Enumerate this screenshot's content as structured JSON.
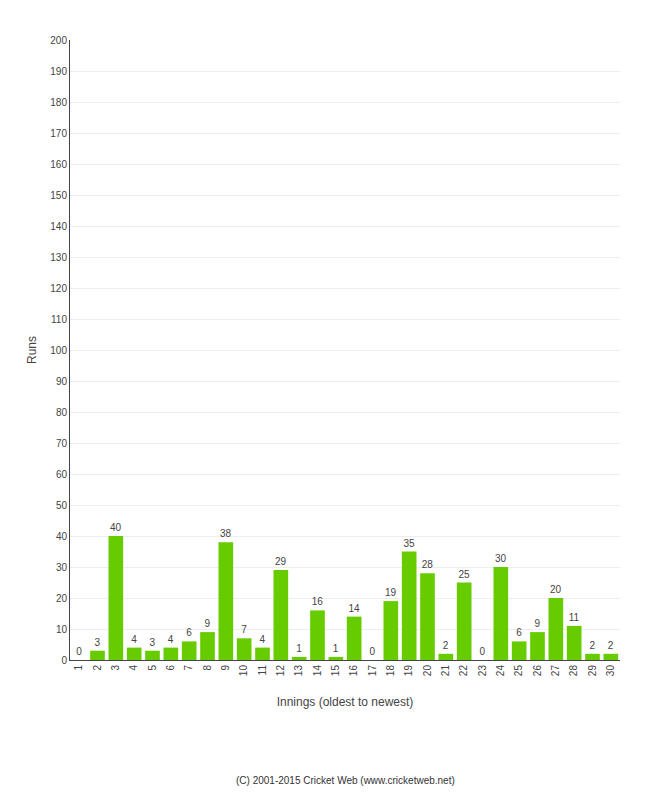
{
  "chart_data": {
    "type": "bar",
    "xlabel": "Innings (oldest to newest)",
    "ylabel": "Runs",
    "categories": [
      "1",
      "2",
      "3",
      "4",
      "5",
      "6",
      "7",
      "8",
      "9",
      "10",
      "11",
      "12",
      "13",
      "14",
      "15",
      "16",
      "17",
      "18",
      "19",
      "20",
      "21",
      "22",
      "23",
      "24",
      "25",
      "26",
      "27",
      "28",
      "29",
      "30"
    ],
    "values": [
      0,
      3,
      40,
      4,
      3,
      4,
      6,
      9,
      38,
      7,
      4,
      29,
      1,
      16,
      1,
      14,
      0,
      19,
      35,
      28,
      2,
      25,
      0,
      30,
      6,
      9,
      20,
      11,
      2,
      2
    ],
    "color": "#66cc00",
    "ylim": [
      0,
      200
    ],
    "yticks": [
      0,
      10,
      20,
      30,
      40,
      50,
      60,
      70,
      80,
      90,
      100,
      110,
      120,
      130,
      140,
      150,
      160,
      170,
      180,
      190,
      200
    ],
    "grid": true,
    "data_labels": true,
    "annotations": [
      "(C) 2001-2015 Cricket Web (www.cricketweb.net)"
    ]
  }
}
